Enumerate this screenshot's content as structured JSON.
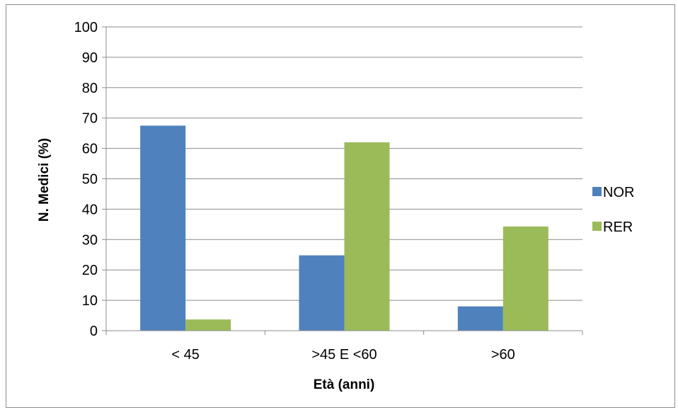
{
  "caption": "",
  "chart_data": {
    "type": "bar",
    "title": "",
    "categories": [
      "< 45",
      ">45 E <60",
      ">60"
    ],
    "series": [
      {
        "name": "NOR",
        "color": "#4f81bd",
        "values": [
          67.5,
          24.8,
          8.0
        ]
      },
      {
        "name": "RER",
        "color": "#9bbb59",
        "values": [
          3.7,
          62.0,
          34.3
        ]
      }
    ],
    "xlabel": "Età (anni)",
    "ylabel": "N. Medici (%)",
    "ylim": [
      0,
      100
    ],
    "yticks": [
      "0",
      "10",
      "20",
      "30",
      "40",
      "50",
      "60",
      "70",
      "80",
      "90",
      "100"
    ],
    "grid": true,
    "legend_position": "right"
  }
}
